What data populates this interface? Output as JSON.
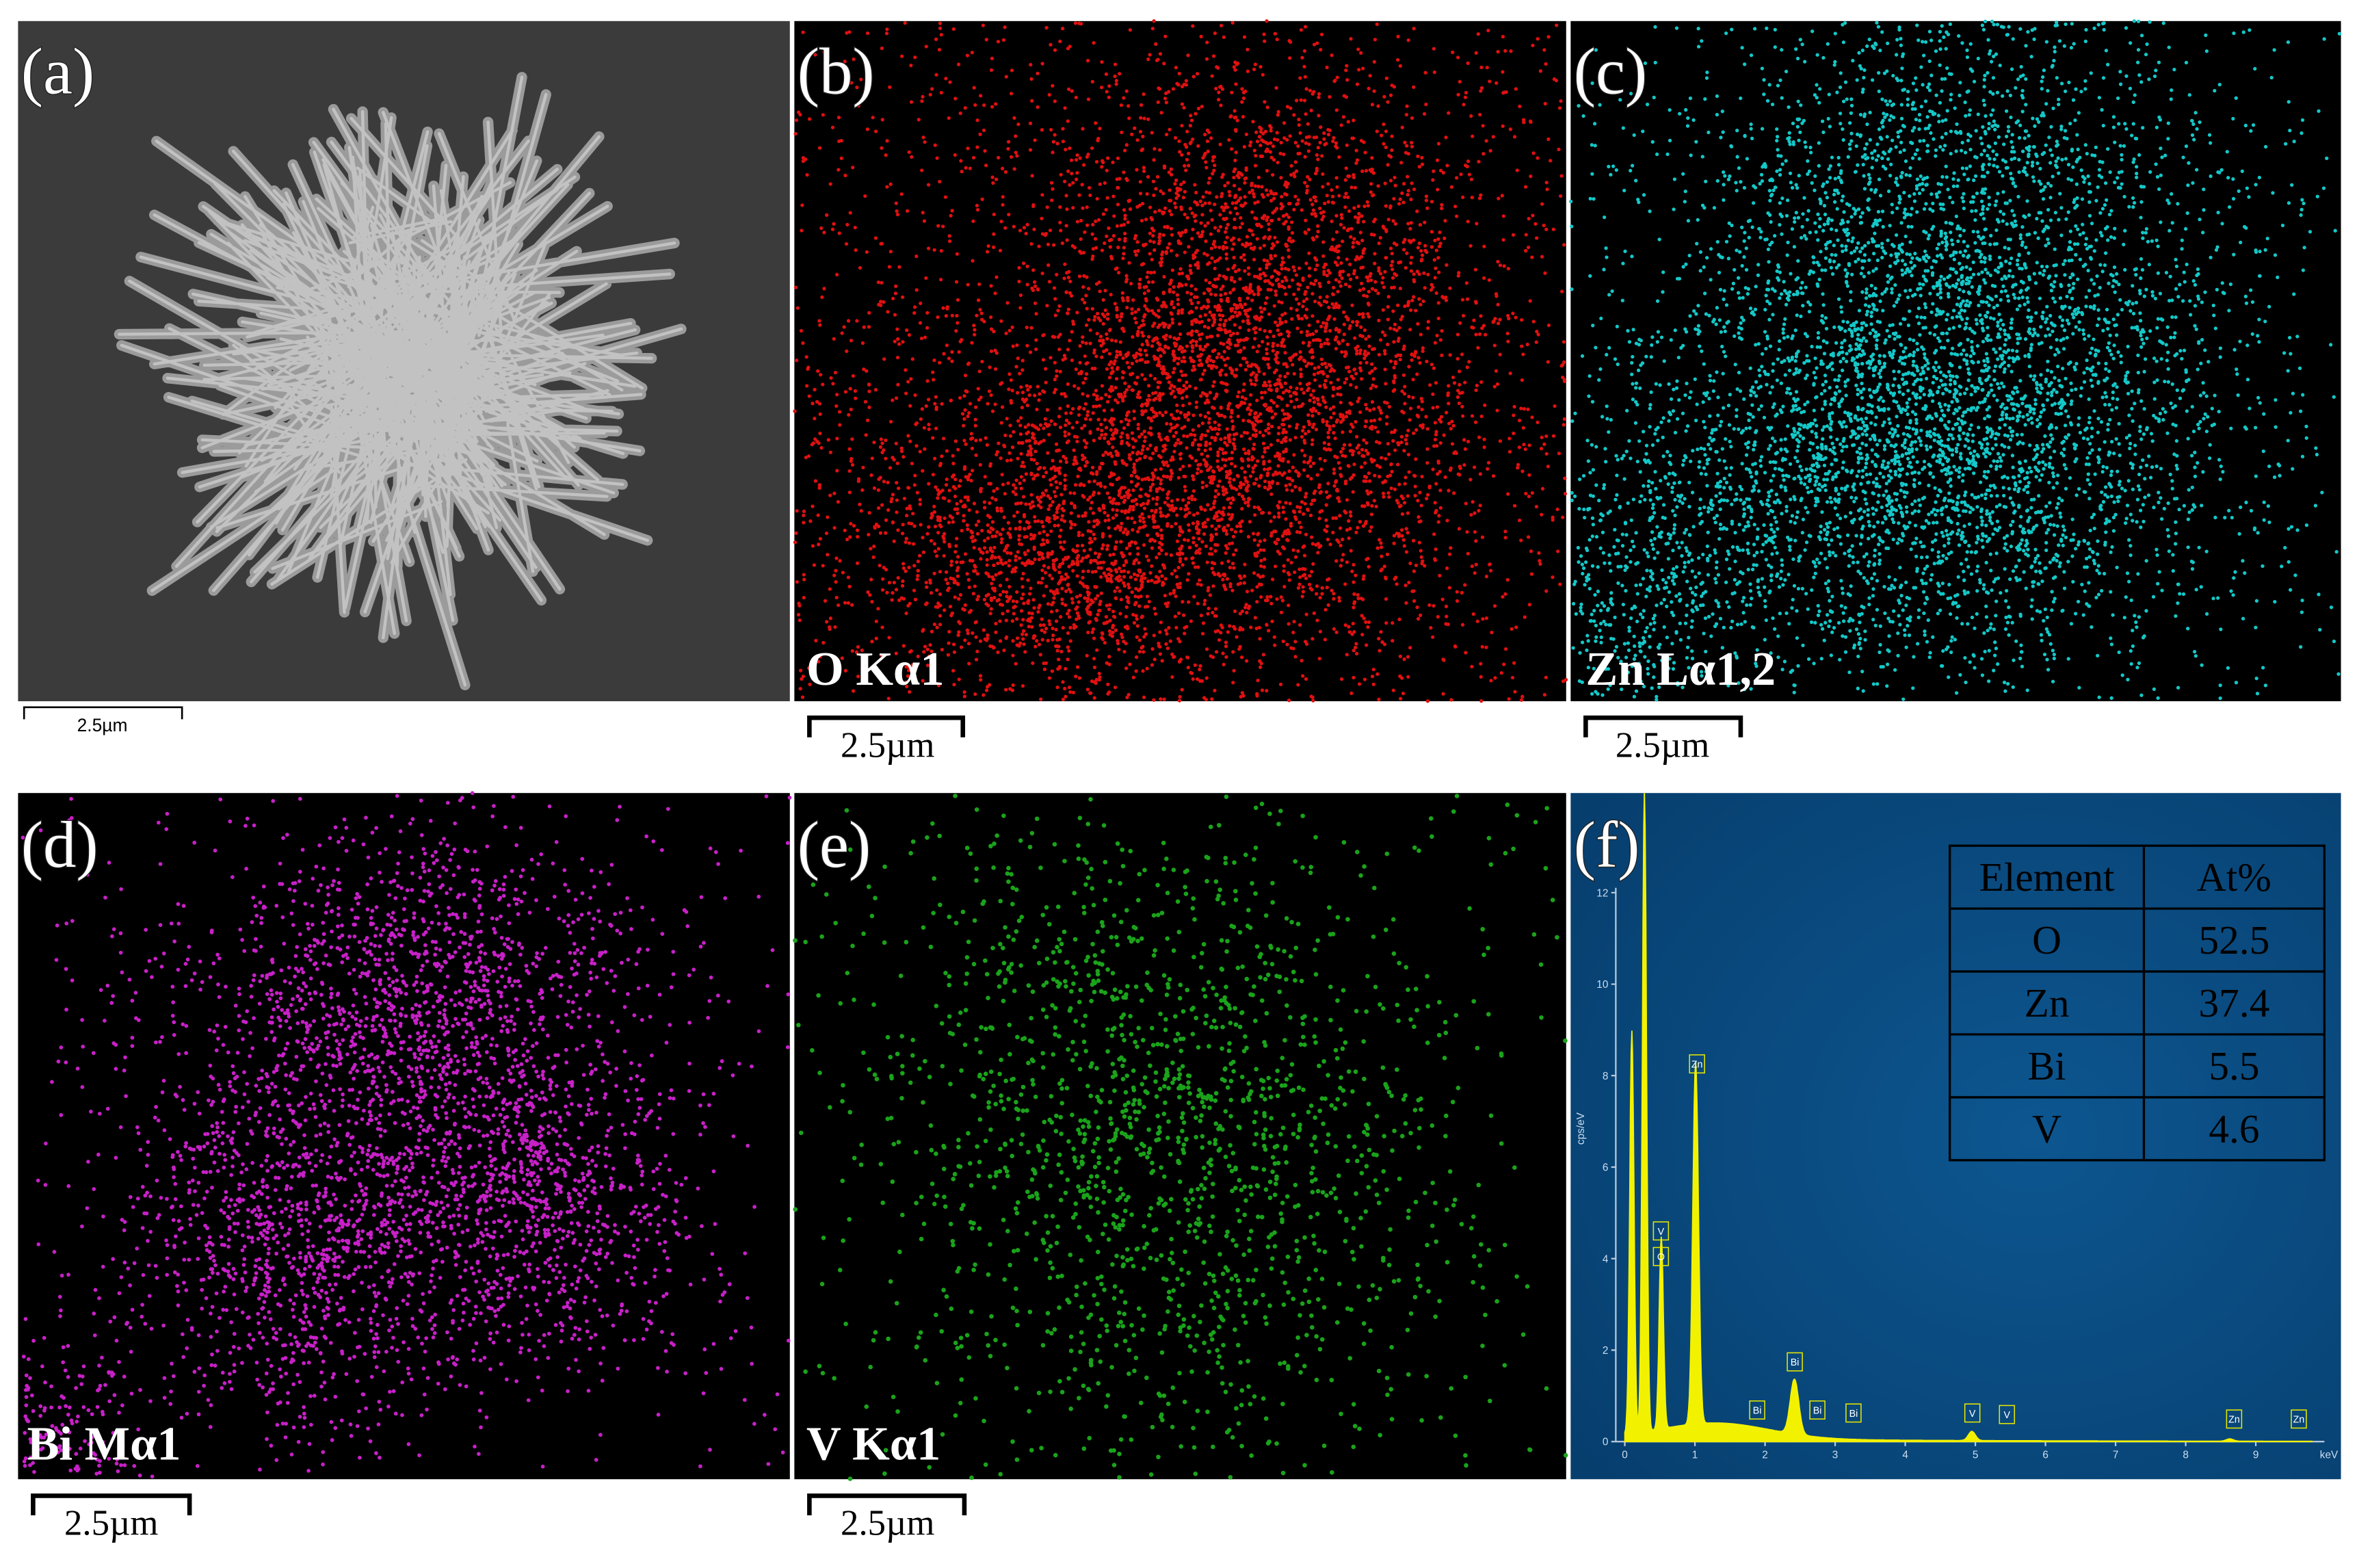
{
  "panels": [
    {
      "label": "(a)",
      "scale_bar": "2.5µm"
    },
    {
      "label": "(b)",
      "map": "O Kα1",
      "scale_bar": "2.5µm"
    },
    {
      "label": "(c)",
      "map": "Zn Lα1,2",
      "scale_bar": "2.5µm"
    },
    {
      "label": "(d)",
      "map": "Bi Mα1",
      "scale_bar": "2.5µm"
    },
    {
      "label": "(e)",
      "map": "V Kα1",
      "scale_bar": "2.5µm"
    },
    {
      "label": "(f)"
    }
  ],
  "spectrum": {
    "y_axis_label": "cps/eV",
    "x_axis_label": "keV",
    "xticks": [
      0,
      1,
      2,
      3,
      4,
      5,
      6,
      7,
      8,
      9
    ],
    "yticks": [
      0,
      2,
      4,
      6,
      8,
      10,
      12
    ],
    "peak_labels": [
      "V",
      "O",
      "Zn",
      "Bi",
      "Bi",
      "Bi",
      "Bi",
      "V",
      "V",
      "Zn",
      "Zn"
    ]
  },
  "table": {
    "header": [
      "Element",
      "At%"
    ],
    "rows": [
      [
        "O",
        52.5
      ],
      [
        "Zn",
        37.4
      ],
      [
        "Bi",
        5.5
      ],
      [
        "V",
        4.6
      ]
    ]
  }
}
